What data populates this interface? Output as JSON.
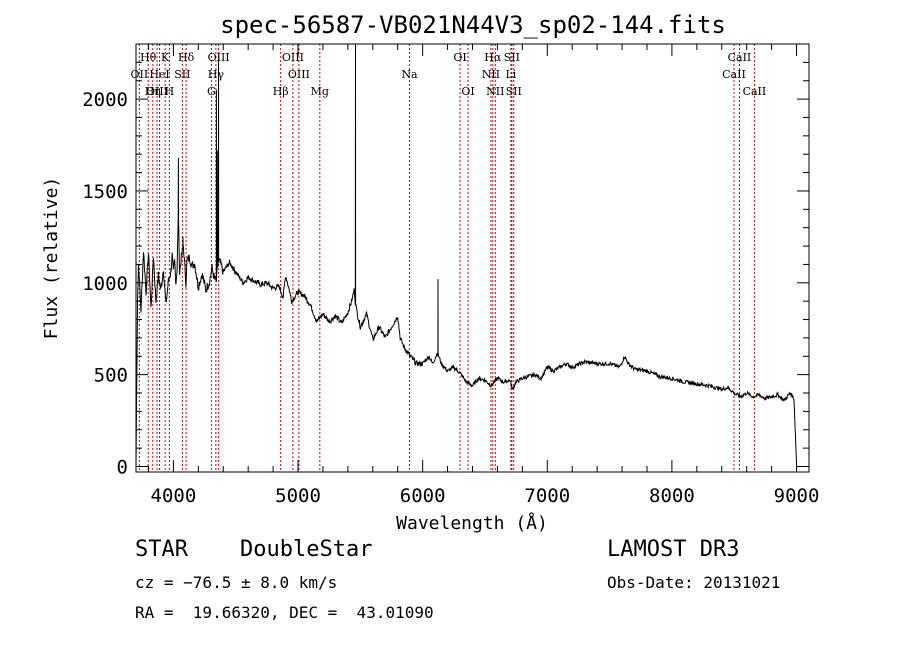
{
  "chart_data": {
    "type": "line",
    "title": "spec-56587-VB021N44V3_sp02-144.fits",
    "xlabel": "Wavelength (Å)",
    "ylabel": "Flux (relative)",
    "xlim": [
      3700,
      9100
    ],
    "ylim": [
      -30,
      2300
    ],
    "xticks": [
      4000,
      5000,
      6000,
      7000,
      8000,
      9000
    ],
    "yticks": [
      0,
      500,
      1000,
      1500,
      2000
    ],
    "spectrum_anchors": [
      [
        3700,
        0
      ],
      [
        3705,
        380
      ],
      [
        3712,
        900
      ],
      [
        3720,
        1100
      ],
      [
        3740,
        850
      ],
      [
        3760,
        1180
      ],
      [
        3780,
        950
      ],
      [
        3800,
        1160
      ],
      [
        3820,
        860
      ],
      [
        3840,
        1150
      ],
      [
        3860,
        900
      ],
      [
        3880,
        1040
      ],
      [
        3900,
        960
      ],
      [
        3920,
        1080
      ],
      [
        3940,
        880
      ],
      [
        3960,
        1010
      ],
      [
        3980,
        1060
      ],
      [
        3990,
        1150
      ],
      [
        4000,
        1050
      ],
      [
        4010,
        1120
      ],
      [
        4020,
        1000
      ],
      [
        4030,
        1080
      ],
      [
        4040,
        1380
      ],
      [
        4050,
        1050
      ],
      [
        4060,
        1120
      ],
      [
        4080,
        1200
      ],
      [
        4100,
        1000
      ],
      [
        4110,
        1120
      ],
      [
        4130,
        1140
      ],
      [
        4150,
        1090
      ],
      [
        4170,
        1110
      ],
      [
        4200,
        980
      ],
      [
        4230,
        1050
      ],
      [
        4260,
        960
      ],
      [
        4290,
        1010
      ],
      [
        4310,
        1080
      ],
      [
        4330,
        1020
      ],
      [
        4345,
        1010
      ],
      [
        4360,
        1120
      ],
      [
        4380,
        1100
      ],
      [
        4400,
        1060
      ],
      [
        4450,
        1110
      ],
      [
        4500,
        1060
      ],
      [
        4560,
        1000
      ],
      [
        4600,
        1030
      ],
      [
        4650,
        1010
      ],
      [
        4700,
        990
      ],
      [
        4750,
        1000
      ],
      [
        4800,
        970
      ],
      [
        4850,
        980
      ],
      [
        4880,
        920
      ],
      [
        4900,
        1040
      ],
      [
        4920,
        990
      ],
      [
        4950,
        900
      ],
      [
        5000,
        950
      ],
      [
        5050,
        930
      ],
      [
        5100,
        880
      ],
      [
        5150,
        790
      ],
      [
        5200,
        830
      ],
      [
        5250,
        790
      ],
      [
        5300,
        820
      ],
      [
        5350,
        780
      ],
      [
        5400,
        840
      ],
      [
        5430,
        900
      ],
      [
        5450,
        960
      ],
      [
        5470,
        850
      ],
      [
        5500,
        760
      ],
      [
        5550,
        830
      ],
      [
        5600,
        690
      ],
      [
        5650,
        760
      ],
      [
        5700,
        700
      ],
      [
        5750,
        760
      ],
      [
        5800,
        820
      ],
      [
        5820,
        700
      ],
      [
        5850,
        650
      ],
      [
        5900,
        600
      ],
      [
        5950,
        560
      ],
      [
        6000,
        560
      ],
      [
        6050,
        600
      ],
      [
        6080,
        560
      ],
      [
        6120,
        620
      ],
      [
        6150,
        560
      ],
      [
        6200,
        520
      ],
      [
        6250,
        540
      ],
      [
        6300,
        510
      ],
      [
        6350,
        460
      ],
      [
        6400,
        440
      ],
      [
        6450,
        480
      ],
      [
        6500,
        470
      ],
      [
        6550,
        440
      ],
      [
        6600,
        480
      ],
      [
        6650,
        460
      ],
      [
        6700,
        470
      ],
      [
        6720,
        420
      ],
      [
        6750,
        460
      ],
      [
        6800,
        480
      ],
      [
        6850,
        490
      ],
      [
        6900,
        500
      ],
      [
        6950,
        480
      ],
      [
        7000,
        540
      ],
      [
        7050,
        520
      ],
      [
        7100,
        540
      ],
      [
        7150,
        560
      ],
      [
        7200,
        540
      ],
      [
        7300,
        570
      ],
      [
        7400,
        560
      ],
      [
        7500,
        560
      ],
      [
        7580,
        540
      ],
      [
        7620,
        600
      ],
      [
        7650,
        560
      ],
      [
        7700,
        530
      ],
      [
        7800,
        520
      ],
      [
        7900,
        490
      ],
      [
        8000,
        480
      ],
      [
        8100,
        460
      ],
      [
        8200,
        450
      ],
      [
        8300,
        440
      ],
      [
        8400,
        420
      ],
      [
        8450,
        430
      ],
      [
        8500,
        400
      ],
      [
        8550,
        380
      ],
      [
        8600,
        400
      ],
      [
        8650,
        380
      ],
      [
        8700,
        390
      ],
      [
        8750,
        370
      ],
      [
        8800,
        380
      ],
      [
        8850,
        390
      ],
      [
        8900,
        360
      ],
      [
        8950,
        400
      ],
      [
        8980,
        370
      ],
      [
        9000,
        20
      ]
    ],
    "emission_spikes": [
      {
        "wavelength": 4040,
        "flux": 1680
      },
      {
        "wavelength": 4345,
        "flux": 2050
      },
      {
        "wavelength": 4352,
        "flux": 1720
      },
      {
        "wavelength": 4362,
        "flux": 2220
      },
      {
        "wavelength": 5461,
        "flux": 2300
      },
      {
        "wavelength": 6123,
        "flux": 1020
      },
      {
        "wavelength": 4077,
        "flux": 1250
      }
    ],
    "spectral_lines": [
      {
        "label": "Hθ",
        "wavelength": 3798,
        "row": 0
      },
      {
        "label": "OII",
        "wavelength": 3727,
        "row": 1
      },
      {
        "label": "OIII",
        "wavelength": 3869,
        "row": 2
      },
      {
        "label": "HeI",
        "wavelength": 3889,
        "row": 1
      },
      {
        "label": "Hη",
        "wavelength": 3835,
        "row": 2
      },
      {
        "label": "K",
        "wavelength": 3934,
        "row": 0
      },
      {
        "label": "H",
        "wavelength": 3968,
        "row": 2
      },
      {
        "label": "SII",
        "wavelength": 4072,
        "row": 1
      },
      {
        "label": "Hδ",
        "wavelength": 4102,
        "row": 0
      },
      {
        "label": "OIII",
        "wavelength": 4363,
        "row": 0
      },
      {
        "label": "Hγ",
        "wavelength": 4341,
        "row": 1
      },
      {
        "label": "G",
        "wavelength": 4305,
        "row": 2
      },
      {
        "label": "OIII",
        "wavelength": 4959,
        "row": 0
      },
      {
        "label": "OIII",
        "wavelength": 5007,
        "row": 1
      },
      {
        "label": "Hβ",
        "wavelength": 4861,
        "row": 2
      },
      {
        "label": "Mg",
        "wavelength": 5175,
        "row": 2
      },
      {
        "label": "Na",
        "wavelength": 5894,
        "row": 1
      },
      {
        "label": "OI",
        "wavelength": 6300,
        "row": 0
      },
      {
        "label": "OI",
        "wavelength": 6364,
        "row": 2
      },
      {
        "label": "Hα",
        "wavelength": 6563,
        "row": 0
      },
      {
        "label": "SII",
        "wavelength": 6716,
        "row": 0
      },
      {
        "label": "NII",
        "wavelength": 6548,
        "row": 1
      },
      {
        "label": "Li",
        "wavelength": 6708,
        "row": 1
      },
      {
        "label": "NII",
        "wavelength": 6583,
        "row": 2
      },
      {
        "label": "SII",
        "wavelength": 6731,
        "row": 2
      },
      {
        "label": "CaII",
        "wavelength": 8542,
        "row": 0
      },
      {
        "label": "CaII",
        "wavelength": 8498,
        "row": 1
      },
      {
        "label": "CaII",
        "wavelength": 8662,
        "row": 2
      }
    ],
    "line_color": "#000000",
    "marker_color": "#cc0000"
  },
  "footer": {
    "object_class": "STAR",
    "subclass": "DoubleStar",
    "survey": "LAMOST DR3",
    "redshift": "cz = −76.5 ± 8.0 km/s",
    "obs_date": "Obs-Date: 20131021",
    "coords": "RA =  19.66320, DEC =  43.01090"
  }
}
